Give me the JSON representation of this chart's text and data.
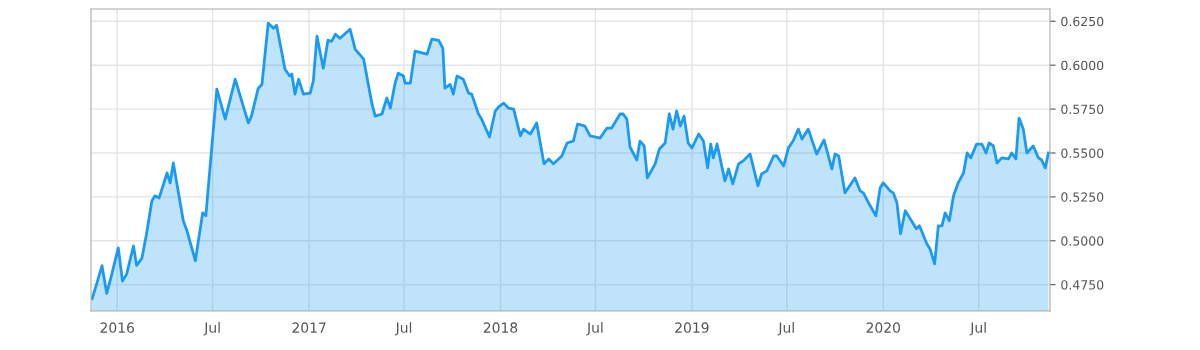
{
  "chart_data": {
    "type": "area",
    "x": [
      "2015-11-14",
      "2015-11-23",
      "2015-12-03",
      "2015-12-12",
      "2015-12-22",
      "2016-01-03",
      "2016-01-11",
      "2016-01-19",
      "2016-02-01",
      "2016-02-07",
      "2016-02-17",
      "2016-02-26",
      "2016-03-07",
      "2016-03-13",
      "2016-03-21",
      "2016-04-05",
      "2016-04-11",
      "2016-04-17",
      "2016-05-06",
      "2016-05-13",
      "2016-05-29",
      "2016-06-12",
      "2016-06-18",
      "2016-07-09",
      "2016-07-25",
      "2016-08-13",
      "2016-09-07",
      "2016-09-13",
      "2016-09-26",
      "2016-10-03",
      "2016-10-15",
      "2016-10-25",
      "2016-10-31",
      "2016-11-16",
      "2016-11-25",
      "2016-11-29",
      "2016-12-05",
      "2016-12-12",
      "2016-12-21",
      "2017-01-03",
      "2017-01-09",
      "2017-01-16",
      "2017-01-28",
      "2017-02-06",
      "2017-02-13",
      "2017-02-20",
      "2017-03-01",
      "2017-03-20",
      "2017-03-30",
      "2017-04-15",
      "2017-05-01",
      "2017-05-07",
      "2017-05-20",
      "2017-05-29",
      "2017-06-05",
      "2017-06-14",
      "2017-06-20",
      "2017-06-30",
      "2017-07-03",
      "2017-07-13",
      "2017-07-22",
      "2017-08-14",
      "2017-08-23",
      "2017-09-05",
      "2017-09-13",
      "2017-09-17",
      "2017-09-27",
      "2017-10-03",
      "2017-10-10",
      "2017-10-22",
      "2017-11-01",
      "2017-11-07",
      "2017-11-20",
      "2017-11-26",
      "2017-12-11",
      "2017-12-22",
      "2017-12-28",
      "2018-01-07",
      "2018-01-16",
      "2018-01-26",
      "2018-02-08",
      "2018-02-14",
      "2018-02-27",
      "2018-03-11",
      "2018-03-25",
      "2018-04-03",
      "2018-04-12",
      "2018-04-28",
      "2018-05-08",
      "2018-05-20",
      "2018-05-28",
      "2018-06-11",
      "2018-06-21",
      "2018-07-10",
      "2018-07-23",
      "2018-08-01",
      "2018-08-17",
      "2018-08-23",
      "2018-08-30",
      "2018-09-05",
      "2018-09-18",
      "2018-09-24",
      "2018-10-02",
      "2018-10-08",
      "2018-10-23",
      "2018-10-31",
      "2018-11-11",
      "2018-11-19",
      "2018-11-26",
      "2018-12-03",
      "2018-12-10",
      "2018-12-17",
      "2018-12-25",
      "2019-01-01",
      "2019-01-14",
      "2019-01-23",
      "2019-01-31",
      "2019-02-06",
      "2019-02-11",
      "2019-02-18",
      "2019-03-05",
      "2019-03-12",
      "2019-03-20",
      "2019-03-31",
      "2019-04-09",
      "2019-04-22",
      "2019-05-07",
      "2019-05-14",
      "2019-05-24",
      "2019-06-06",
      "2019-06-12",
      "2019-06-25",
      "2019-07-04",
      "2019-07-13",
      "2019-07-23",
      "2019-07-30",
      "2019-08-11",
      "2019-08-27",
      "2019-09-10",
      "2019-09-25",
      "2019-10-01",
      "2019-10-08",
      "2019-10-20",
      "2019-11-08",
      "2019-11-18",
      "2019-11-24",
      "2019-12-04",
      "2019-12-18",
      "2019-12-26",
      "2020-01-01",
      "2020-01-14",
      "2020-01-20",
      "2020-01-27",
      "2020-02-03",
      "2020-02-12",
      "2020-03-04",
      "2020-03-10",
      "2020-03-24",
      "2020-03-30",
      "2020-04-08",
      "2020-04-15",
      "2020-04-22",
      "2020-04-28",
      "2020-05-06",
      "2020-05-14",
      "2020-05-23",
      "2020-06-02",
      "2020-06-09",
      "2020-06-16",
      "2020-06-27",
      "2020-07-07",
      "2020-07-15",
      "2020-07-21",
      "2020-07-29",
      "2020-08-05",
      "2020-08-14",
      "2020-08-27",
      "2020-09-02",
      "2020-09-10",
      "2020-09-16",
      "2020-09-24",
      "2020-10-01",
      "2020-10-13",
      "2020-10-23",
      "2020-10-29",
      "2020-11-05",
      "2020-11-11"
    ],
    "series": [
      {
        "color": "#1a9af0",
        "values": [
          0.467,
          0.4756,
          0.4858,
          0.47,
          0.4813,
          0.496,
          0.477,
          0.481,
          0.497,
          0.486,
          0.49,
          0.504,
          0.5227,
          0.5256,
          0.5244,
          0.5386,
          0.533,
          0.5443,
          0.5114,
          0.5057,
          0.4886,
          0.5159,
          0.5142,
          0.5864,
          0.5693,
          0.592,
          0.5671,
          0.571,
          0.5869,
          0.589,
          0.6239,
          0.621,
          0.6227,
          0.5977,
          0.5938,
          0.595,
          0.5835,
          0.592,
          0.5835,
          0.5841,
          0.591,
          0.6165,
          0.5983,
          0.6142,
          0.6136,
          0.6176,
          0.6153,
          0.6205,
          0.609,
          0.6034,
          0.5778,
          0.571,
          0.5722,
          0.5813,
          0.5756,
          0.5898,
          0.5955,
          0.5938,
          0.5898,
          0.5898,
          0.608,
          0.6063,
          0.6148,
          0.6142,
          0.6097,
          0.5869,
          0.589,
          0.5835,
          0.5938,
          0.592,
          0.5841,
          0.5835,
          0.5722,
          0.5693,
          0.5591,
          0.5739,
          0.5761,
          0.5784,
          0.5756,
          0.575,
          0.5597,
          0.5636,
          0.5608,
          0.5671,
          0.5438,
          0.5466,
          0.5438,
          0.5483,
          0.5557,
          0.5568,
          0.5665,
          0.5653,
          0.5597,
          0.5585,
          0.5642,
          0.5642,
          0.5722,
          0.5722,
          0.5693,
          0.5534,
          0.546,
          0.5568,
          0.554,
          0.5358,
          0.5438,
          0.5523,
          0.5557,
          0.5722,
          0.5636,
          0.5739,
          0.5653,
          0.571,
          0.5557,
          0.5528,
          0.5608,
          0.5568,
          0.5415,
          0.5551,
          0.5472,
          0.5551,
          0.5341,
          0.5409,
          0.5324,
          0.5438,
          0.5455,
          0.5494,
          0.5313,
          0.5381,
          0.5398,
          0.5483,
          0.5483,
          0.5426,
          0.5528,
          0.5568,
          0.5636,
          0.5579,
          0.5636,
          0.5494,
          0.5574,
          0.5409,
          0.5494,
          0.5483,
          0.5273,
          0.5358,
          0.5284,
          0.5273,
          0.5216,
          0.5142,
          0.5301,
          0.533,
          0.5284,
          0.5273,
          0.5216,
          0.504,
          0.5171,
          0.5068,
          0.5085,
          0.4983,
          0.4955,
          0.4869,
          0.5085,
          0.5085,
          0.5159,
          0.5114,
          0.5256,
          0.533,
          0.5386,
          0.55,
          0.5472,
          0.5551,
          0.5551,
          0.55,
          0.5557,
          0.554,
          0.5443,
          0.5472,
          0.5466,
          0.55,
          0.5466,
          0.5699,
          0.5636,
          0.55,
          0.554,
          0.5472,
          0.546,
          0.5415,
          0.55
        ]
      }
    ],
    "xlim": [
      "2015-11-12",
      "2020-11-14"
    ],
    "xticks": [
      {
        "value": "2016-01-01",
        "label": "2016"
      },
      {
        "value": "2016-07-01",
        "label": "Jul"
      },
      {
        "value": "2017-01-01",
        "label": "2017"
      },
      {
        "value": "2017-07-01",
        "label": "Jul"
      },
      {
        "value": "2018-01-01",
        "label": "2018"
      },
      {
        "value": "2018-07-01",
        "label": "Jul"
      },
      {
        "value": "2019-01-01",
        "label": "2019"
      },
      {
        "value": "2019-07-01",
        "label": "Jul"
      },
      {
        "value": "2020-01-01",
        "label": "2020"
      },
      {
        "value": "2020-07-01",
        "label": "Jul"
      }
    ],
    "ylim": [
      0.46,
      0.632
    ],
    "yticks": [
      {
        "value": 0.475,
        "label": "0.4750"
      },
      {
        "value": 0.5,
        "label": "0.5000"
      },
      {
        "value": 0.525,
        "label": "0.5250"
      },
      {
        "value": 0.55,
        "label": "0.5500"
      },
      {
        "value": 0.575,
        "label": "0.5750"
      },
      {
        "value": 0.6,
        "label": "0.6000"
      },
      {
        "value": 0.625,
        "label": "0.6250"
      }
    ],
    "grid": true,
    "legend": false,
    "marker": "none",
    "line_style": "solid"
  }
}
